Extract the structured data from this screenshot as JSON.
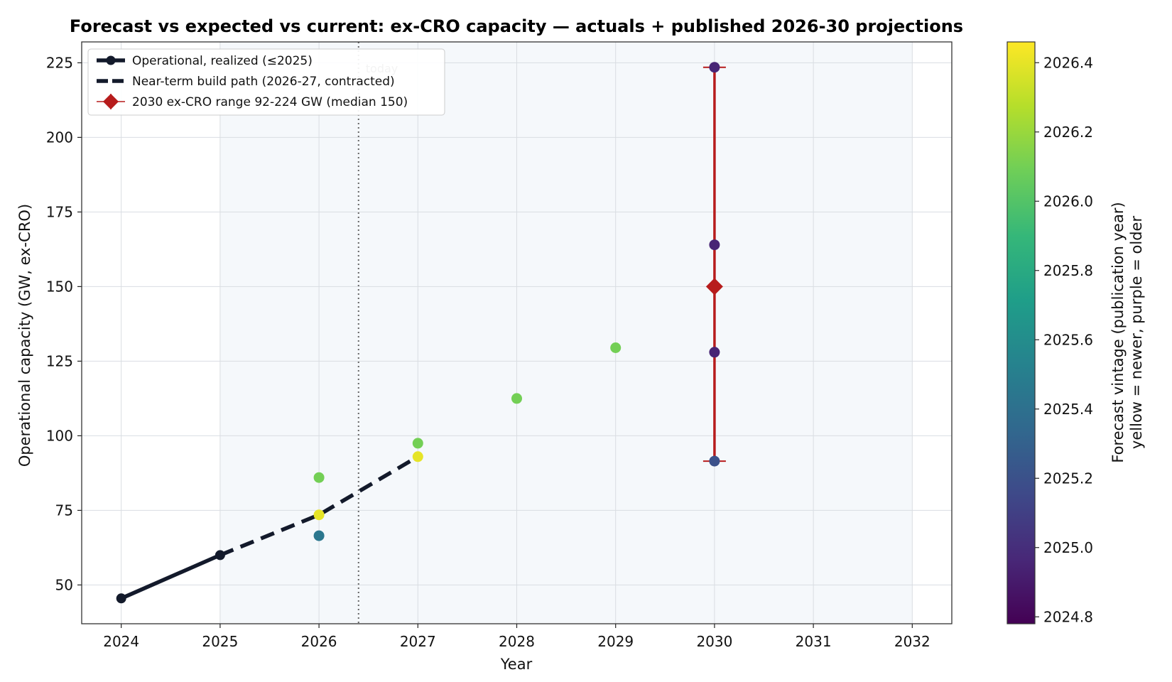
{
  "chart_data": {
    "type": "scatter",
    "title": "Forecast vs expected vs current: ex-CRO capacity — actuals + published 2026-30 projections",
    "xlabel": "Year",
    "ylabel": "Operational capacity (GW, ex-CRO)",
    "xlim": [
      2023.6,
      2032.4
    ],
    "ylim": [
      37,
      232
    ],
    "x_ticks": [
      "2024",
      "2025",
      "2026",
      "2027",
      "2028",
      "2029",
      "2030",
      "2031",
      "2032"
    ],
    "x_tick_values": [
      2024,
      2025,
      2026,
      2027,
      2028,
      2029,
      2030,
      2031,
      2032
    ],
    "y_ticks": [
      "50",
      "75",
      "100",
      "125",
      "150",
      "175",
      "200",
      "225"
    ],
    "y_tick_values": [
      50,
      75,
      100,
      125,
      150,
      175,
      200,
      225
    ],
    "grid": true,
    "shaded_region": [
      2025,
      2032
    ],
    "today_marker": {
      "x": 2026.4,
      "label": "today"
    },
    "legend_position": "upper left",
    "series": [
      {
        "name": "Operational, realized (≤2025)",
        "style": "solid-line-markers",
        "color": "#131a2b",
        "points": [
          {
            "x": 2024,
            "y": 45.5
          },
          {
            "x": 2025,
            "y": 60
          }
        ]
      },
      {
        "name": "Near-term build path (2026-27, contracted)",
        "style": "dashed-line",
        "color": "#131a2b",
        "points": [
          {
            "x": 2025,
            "y": 60
          },
          {
            "x": 2026,
            "y": 73.5
          },
          {
            "x": 2027,
            "y": 93
          }
        ]
      },
      {
        "name": "2030 ex-CRO range 92-224 GW (median 150)",
        "style": "errorbar-diamond",
        "color": "#b71c1c",
        "x": 2030,
        "median": 150,
        "low": 91.5,
        "high": 223.5
      }
    ],
    "forecast_points": [
      {
        "x": 2026,
        "y": 86,
        "vintage": 2026.1
      },
      {
        "x": 2026,
        "y": 73.5,
        "vintage": 2026.4
      },
      {
        "x": 2026,
        "y": 66.5,
        "vintage": 2025.45
      },
      {
        "x": 2027,
        "y": 97.5,
        "vintage": 2026.1
      },
      {
        "x": 2027,
        "y": 93,
        "vintage": 2026.4
      },
      {
        "x": 2028,
        "y": 112.5,
        "vintage": 2026.1
      },
      {
        "x": 2029,
        "y": 129.5,
        "vintage": 2026.1
      },
      {
        "x": 2030,
        "y": 223.5,
        "vintage": 2024.95
      },
      {
        "x": 2030,
        "y": 164,
        "vintage": 2024.95
      },
      {
        "x": 2030,
        "y": 128,
        "vintage": 2024.95
      },
      {
        "x": 2030,
        "y": 91.5,
        "vintage": 2025.2
      }
    ],
    "colorbar": {
      "label_line1": "Forecast vintage (publication year)",
      "label_line2": "yellow = newer, purple = older",
      "min": 2024.78,
      "max": 2026.46,
      "ticks": [
        "2024.8",
        "2025.0",
        "2025.2",
        "2025.4",
        "2025.6",
        "2025.8",
        "2026.0",
        "2026.2",
        "2026.4"
      ],
      "tick_values": [
        2024.8,
        2025.0,
        2025.2,
        2025.4,
        2025.6,
        2025.8,
        2026.0,
        2026.2,
        2026.4
      ],
      "colormap": [
        "#440154",
        "#482878",
        "#3e4989",
        "#31688e",
        "#26828e",
        "#1f9e89",
        "#35b779",
        "#6ece58",
        "#b5de2b",
        "#fde725"
      ]
    }
  }
}
